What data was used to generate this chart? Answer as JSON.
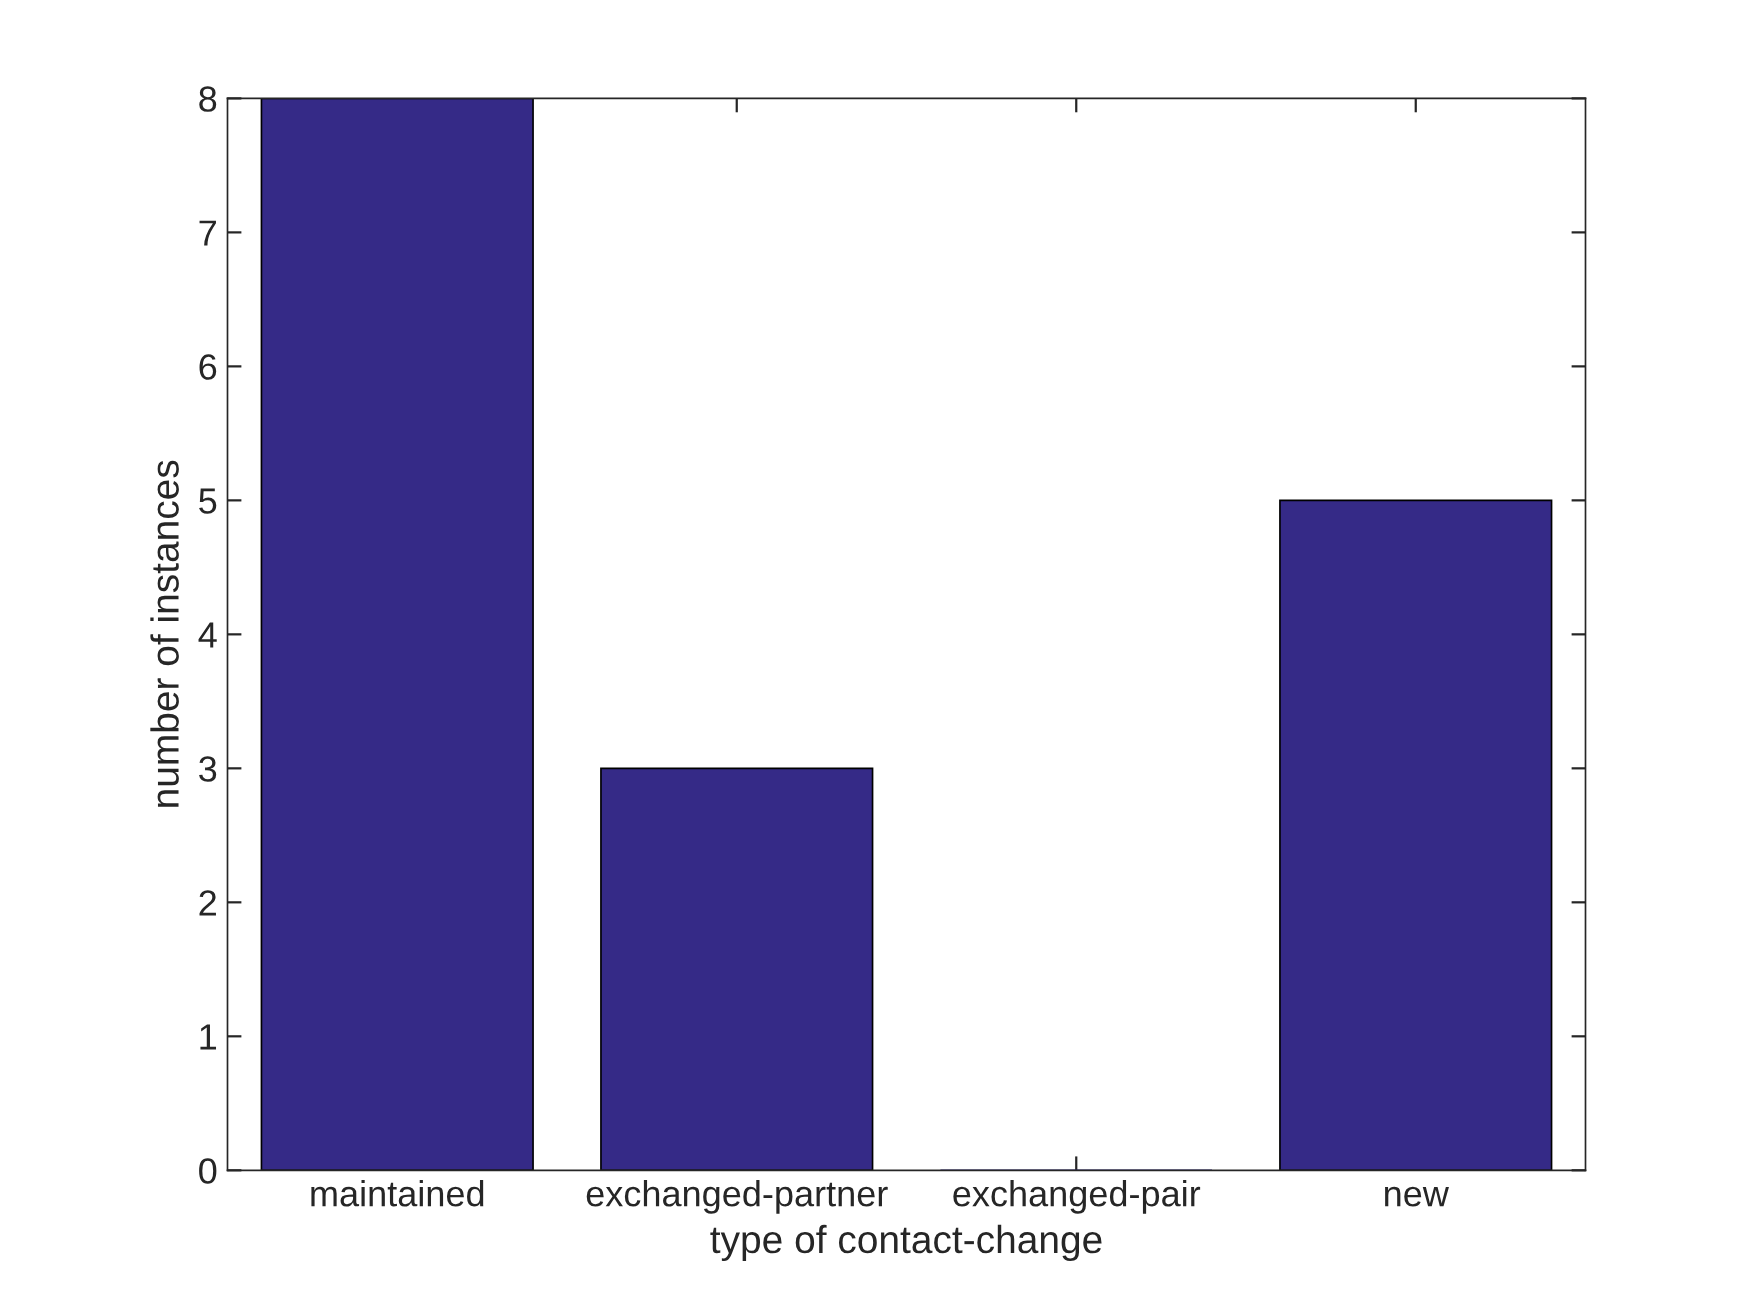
{
  "chart_data": {
    "type": "bar",
    "xlabel": "type of contact-change",
    "ylabel": "number of instances",
    "categories": [
      "maintained",
      "exchanged-partner",
      "exchanged-pair",
      "new"
    ],
    "values": [
      8,
      3,
      0,
      5
    ],
    "color": "#352a87",
    "ylim": [
      0,
      8
    ],
    "yticks": [
      0,
      1,
      2,
      3,
      4,
      5,
      6,
      7,
      8
    ],
    "grid": false
  }
}
